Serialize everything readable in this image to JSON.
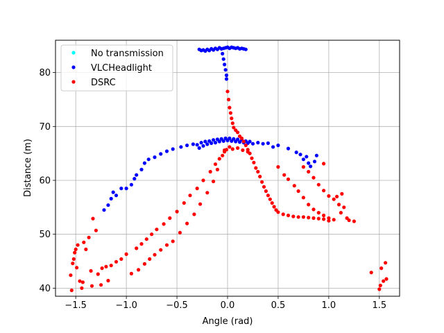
{
  "chart_data": {
    "type": "scatter",
    "xlabel": "Angle (rad)",
    "ylabel": "Distance (m)",
    "xlim": [
      -1.7,
      1.7
    ],
    "ylim": [
      38.5,
      86
    ],
    "xticks": [
      -1.5,
      -1.0,
      -0.5,
      0.0,
      0.5,
      1.0,
      1.5
    ],
    "xtick_labels": [
      "−1.5",
      "−1.0",
      "−0.5",
      "0.0",
      "0.5",
      "1.0",
      "1.5"
    ],
    "yticks": [
      40,
      50,
      60,
      70,
      80
    ],
    "ytick_labels": [
      "40",
      "50",
      "60",
      "70",
      "80"
    ],
    "grid": true,
    "legend_position": "top-left",
    "series": [
      {
        "name": "No transmission",
        "color": "#00ffff",
        "points": []
      },
      {
        "name": "VLCHeadlight",
        "color": "#0000ff",
        "points": [
          [
            -0.28,
            84.3
          ],
          [
            -0.26,
            84.1
          ],
          [
            -0.24,
            84.2
          ],
          [
            -0.22,
            84.0
          ],
          [
            -0.2,
            84.3
          ],
          [
            -0.18,
            84.1
          ],
          [
            -0.16,
            84.4
          ],
          [
            -0.14,
            84.2
          ],
          [
            -0.12,
            84.5
          ],
          [
            -0.1,
            84.3
          ],
          [
            -0.08,
            84.6
          ],
          [
            -0.06,
            84.4
          ],
          [
            -0.04,
            84.5
          ],
          [
            -0.02,
            84.6
          ],
          [
            0.0,
            84.7
          ],
          [
            0.02,
            84.5
          ],
          [
            0.04,
            84.7
          ],
          [
            0.06,
            84.6
          ],
          [
            0.08,
            84.5
          ],
          [
            0.1,
            84.6
          ],
          [
            0.12,
            84.4
          ],
          [
            0.14,
            84.5
          ],
          [
            0.16,
            84.4
          ],
          [
            0.18,
            84.3
          ],
          [
            -0.05,
            83.5
          ],
          [
            -0.04,
            82.5
          ],
          [
            -0.03,
            81.5
          ],
          [
            -0.02,
            80.5
          ],
          [
            -0.01,
            79.5
          ],
          [
            -0.01,
            78.8
          ],
          [
            -1.22,
            54.5
          ],
          [
            -1.18,
            55.4
          ],
          [
            -1.15,
            56.6
          ],
          [
            -1.13,
            57.8
          ],
          [
            -1.1,
            57.2
          ],
          [
            -1.05,
            58.5
          ],
          [
            -1.0,
            58.5
          ],
          [
            -0.95,
            59.2
          ],
          [
            -0.92,
            60.3
          ],
          [
            -0.9,
            61.0
          ],
          [
            -0.85,
            62.0
          ],
          [
            -0.82,
            63.2
          ],
          [
            -0.78,
            63.9
          ],
          [
            -0.72,
            64.3
          ],
          [
            -0.66,
            64.9
          ],
          [
            -0.6,
            65.4
          ],
          [
            -0.54,
            65.8
          ],
          [
            -0.46,
            66.2
          ],
          [
            -0.4,
            66.5
          ],
          [
            -0.34,
            66.7
          ],
          [
            -0.3,
            66.6
          ],
          [
            -0.28,
            66.0
          ],
          [
            -0.26,
            67.0
          ],
          [
            -0.24,
            66.4
          ],
          [
            -0.22,
            67.2
          ],
          [
            -0.2,
            66.7
          ],
          [
            -0.18,
            67.3
          ],
          [
            -0.16,
            66.9
          ],
          [
            -0.14,
            67.5
          ],
          [
            -0.12,
            67.0
          ],
          [
            -0.1,
            67.6
          ],
          [
            -0.08,
            67.2
          ],
          [
            -0.06,
            67.7
          ],
          [
            -0.04,
            67.3
          ],
          [
            -0.02,
            67.8
          ],
          [
            0.0,
            67.4
          ],
          [
            0.02,
            67.8
          ],
          [
            0.04,
            67.3
          ],
          [
            0.06,
            67.7
          ],
          [
            0.08,
            67.2
          ],
          [
            0.1,
            67.6
          ],
          [
            0.12,
            67.1
          ],
          [
            0.14,
            67.5
          ],
          [
            0.16,
            67.0
          ],
          [
            0.18,
            67.3
          ],
          [
            0.2,
            66.9
          ],
          [
            0.22,
            67.2
          ],
          [
            0.25,
            66.8
          ],
          [
            0.3,
            67.0
          ],
          [
            0.35,
            66.8
          ],
          [
            0.4,
            66.9
          ],
          [
            0.45,
            66.2
          ],
          [
            0.5,
            66.5
          ],
          [
            0.6,
            65.9
          ],
          [
            0.68,
            65.2
          ],
          [
            0.72,
            64.8
          ],
          [
            0.75,
            63.9
          ],
          [
            0.78,
            64.4
          ],
          [
            0.8,
            63.2
          ],
          [
            0.82,
            62.6
          ],
          [
            0.86,
            63.5
          ],
          [
            0.88,
            64.6
          ]
        ]
      },
      {
        "name": "DSRC",
        "color": "#ff0000",
        "points": [
          [
            -1.55,
            42.4
          ],
          [
            -1.54,
            39.6
          ],
          [
            -1.53,
            44.6
          ],
          [
            -1.52,
            45.4
          ],
          [
            -1.51,
            46.6
          ],
          [
            -1.5,
            47.2
          ],
          [
            -1.49,
            43.8
          ],
          [
            -1.48,
            48.0
          ],
          [
            -1.46,
            41.3
          ],
          [
            -1.44,
            40.0
          ],
          [
            -1.43,
            41.1
          ],
          [
            -1.42,
            48.5
          ],
          [
            -1.4,
            47.2
          ],
          [
            -1.37,
            49.4
          ],
          [
            -1.35,
            43.2
          ],
          [
            -1.34,
            40.4
          ],
          [
            -1.33,
            52.9
          ],
          [
            -1.3,
            50.7
          ],
          [
            -1.28,
            42.6
          ],
          [
            -1.25,
            40.6
          ],
          [
            -1.24,
            43.7
          ],
          [
            -1.2,
            44.0
          ],
          [
            -1.18,
            41.4
          ],
          [
            -1.15,
            44.2
          ],
          [
            -1.1,
            44.9
          ],
          [
            -1.05,
            45.4
          ],
          [
            -1.0,
            46.3
          ],
          [
            -0.95,
            42.7
          ],
          [
            -0.9,
            47.4
          ],
          [
            -0.88,
            43.4
          ],
          [
            -0.85,
            48.2
          ],
          [
            -0.82,
            44.5
          ],
          [
            -0.8,
            49.1
          ],
          [
            -0.77,
            45.4
          ],
          [
            -0.75,
            50.0
          ],
          [
            -0.72,
            46.2
          ],
          [
            -0.7,
            50.9
          ],
          [
            -0.66,
            47.1
          ],
          [
            -0.63,
            51.9
          ],
          [
            -0.6,
            48.0
          ],
          [
            -0.57,
            53.0
          ],
          [
            -0.54,
            48.7
          ],
          [
            -0.5,
            54.2
          ],
          [
            -0.47,
            50.3
          ],
          [
            -0.43,
            55.8
          ],
          [
            -0.4,
            52.0
          ],
          [
            -0.37,
            57.2
          ],
          [
            -0.33,
            53.7
          ],
          [
            -0.3,
            58.5
          ],
          [
            -0.27,
            55.6
          ],
          [
            -0.24,
            60.0
          ],
          [
            -0.2,
            57.7
          ],
          [
            -0.17,
            61.6
          ],
          [
            -0.14,
            59.8
          ],
          [
            -0.12,
            63.0
          ],
          [
            -0.1,
            62.0
          ],
          [
            -0.08,
            64.0
          ],
          [
            -0.05,
            64.6
          ],
          [
            -0.03,
            65.3
          ],
          [
            -0.01,
            65.7
          ],
          [
            0.0,
            76.5
          ],
          [
            0.01,
            75.0
          ],
          [
            0.02,
            73.5
          ],
          [
            0.03,
            72.5
          ],
          [
            0.04,
            71.5
          ],
          [
            0.05,
            70.6
          ],
          [
            0.06,
            69.8
          ],
          [
            0.08,
            69.3
          ],
          [
            0.1,
            68.9
          ],
          [
            0.12,
            68.2
          ],
          [
            0.14,
            67.8
          ],
          [
            0.16,
            67.2
          ],
          [
            0.18,
            66.5
          ],
          [
            0.2,
            65.7
          ],
          [
            0.22,
            65.0
          ],
          [
            0.24,
            64.1
          ],
          [
            0.26,
            63.3
          ],
          [
            0.28,
            62.3
          ],
          [
            0.3,
            61.6
          ],
          [
            0.32,
            60.7
          ],
          [
            0.34,
            59.7
          ],
          [
            0.36,
            58.8
          ],
          [
            0.38,
            58.0
          ],
          [
            0.4,
            57.2
          ],
          [
            0.42,
            56.5
          ],
          [
            0.44,
            55.8
          ],
          [
            0.46,
            55.1
          ],
          [
            0.48,
            54.5
          ],
          [
            0.5,
            54.1
          ],
          [
            0.55,
            53.7
          ],
          [
            0.6,
            53.5
          ],
          [
            0.65,
            53.3
          ],
          [
            0.7,
            53.2
          ],
          [
            0.75,
            53.2
          ],
          [
            0.8,
            53.1
          ],
          [
            0.85,
            53.0
          ],
          [
            0.9,
            52.9
          ],
          [
            0.95,
            52.8
          ],
          [
            1.0,
            53.0
          ],
          [
            0.5,
            62.5
          ],
          [
            0.56,
            61.0
          ],
          [
            0.6,
            60.2
          ],
          [
            0.66,
            59.0
          ],
          [
            0.7,
            58.0
          ],
          [
            0.75,
            56.8
          ],
          [
            0.8,
            55.5
          ],
          [
            0.85,
            54.6
          ],
          [
            0.9,
            54.0
          ],
          [
            0.95,
            53.5
          ],
          [
            0.75,
            62.5
          ],
          [
            0.8,
            61.6
          ],
          [
            0.85,
            60.5
          ],
          [
            0.9,
            59.2
          ],
          [
            0.95,
            58.1
          ],
          [
            0.95,
            63.1
          ],
          [
            1.0,
            57.1
          ],
          [
            1.05,
            56.5
          ],
          [
            1.08,
            57.0
          ],
          [
            1.1,
            55.5
          ],
          [
            1.12,
            54.0
          ],
          [
            1.15,
            55.0
          ],
          [
            1.18,
            53.0
          ],
          [
            1.2,
            52.6
          ],
          [
            1.13,
            57.5
          ],
          [
            1.0,
            52.5
          ],
          [
            1.05,
            52.7
          ],
          [
            1.25,
            52.4
          ],
          [
            1.42,
            42.9
          ],
          [
            1.5,
            39.8
          ],
          [
            1.51,
            40.5
          ],
          [
            1.52,
            43.7
          ],
          [
            1.54,
            41.3
          ],
          [
            1.56,
            44.7
          ],
          [
            1.57,
            41.7
          ],
          [
            -0.03,
            65.6
          ],
          [
            0.02,
            66.2
          ],
          [
            0.05,
            65.8
          ],
          [
            0.1,
            66.0
          ],
          [
            0.15,
            65.6
          ],
          [
            0.2,
            65.3
          ]
        ]
      }
    ]
  }
}
